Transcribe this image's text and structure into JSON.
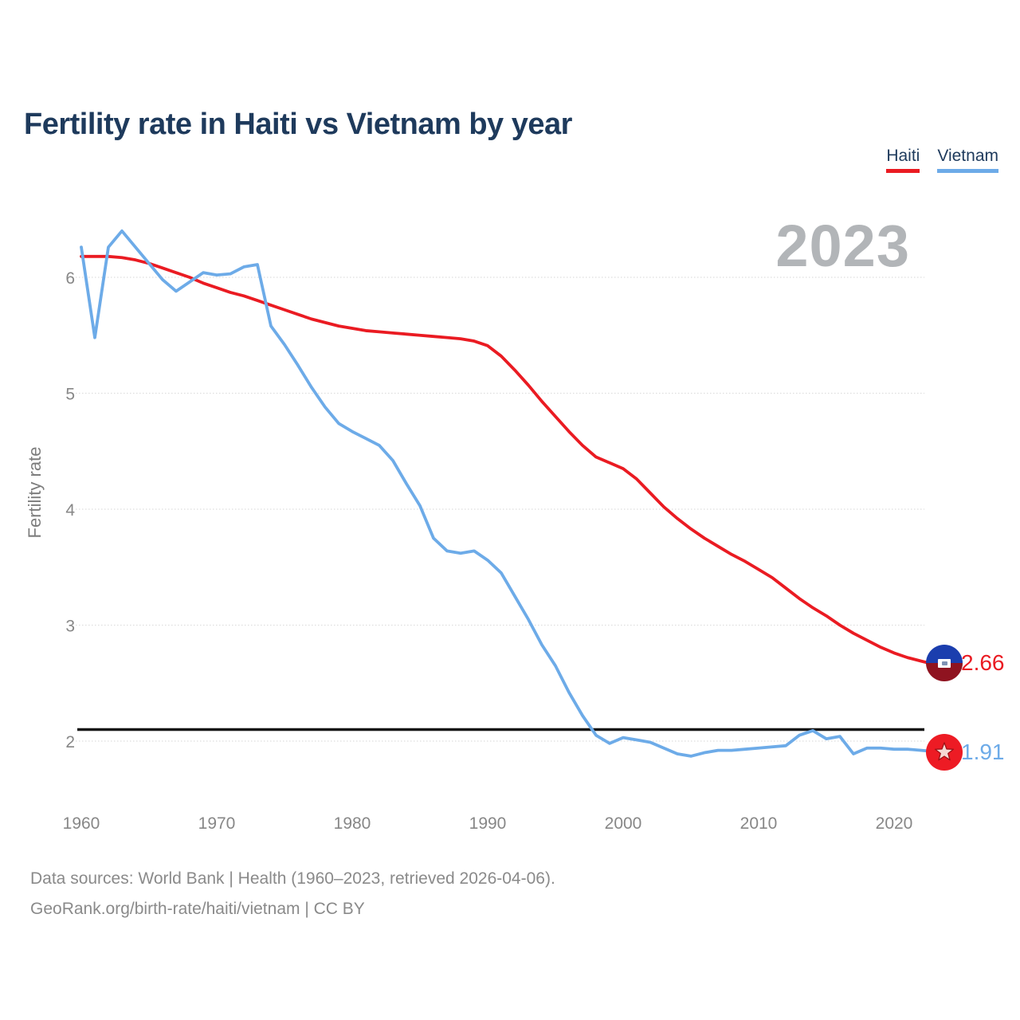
{
  "title": "Fertility rate in Haiti vs Vietnam by year",
  "watermark_year": "2023",
  "legend": [
    {
      "label": "Haiti",
      "color": "#ea1b22"
    },
    {
      "label": "Vietnam",
      "color": "#6dabe8"
    }
  ],
  "y_axis": {
    "label": "Fertility rate",
    "ticks": [
      2,
      3,
      4,
      5,
      6
    ]
  },
  "x_axis": {
    "ticks": [
      1960,
      1970,
      1980,
      1990,
      2000,
      2010,
      2020
    ]
  },
  "reference_line": {
    "value": 2.1,
    "color": "#161616"
  },
  "endpoints": [
    {
      "series": "Haiti",
      "value": "2.66",
      "flag": "haiti-flag"
    },
    {
      "series": "Vietnam",
      "value": "1.91",
      "flag": "vietnam-flag"
    }
  ],
  "footer": {
    "line1": "Data sources: World Bank | Health (1960–2023, retrieved 2026-04-06).",
    "line2": "GeoRank.org/birth-rate/haiti/vietnam | CC BY"
  },
  "chart_data": {
    "type": "line",
    "title": "Fertility rate in Haiti vs Vietnam by year",
    "xlabel": "",
    "ylabel": "Fertility rate",
    "xlim": [
      1960,
      2023
    ],
    "ylim": [
      1.7,
      6.6
    ],
    "grid": "horizontal-dotted",
    "legend_position": "top-right",
    "annotations": {
      "replacement_level_line": 2.1,
      "year_watermark": "2023"
    },
    "x": [
      1960,
      1961,
      1962,
      1963,
      1964,
      1965,
      1966,
      1967,
      1968,
      1969,
      1970,
      1971,
      1972,
      1973,
      1974,
      1975,
      1976,
      1977,
      1978,
      1979,
      1980,
      1981,
      1982,
      1983,
      1984,
      1985,
      1986,
      1987,
      1988,
      1989,
      1990,
      1991,
      1992,
      1993,
      1994,
      1995,
      1996,
      1997,
      1998,
      1999,
      2000,
      2001,
      2002,
      2003,
      2004,
      2005,
      2006,
      2007,
      2008,
      2009,
      2010,
      2011,
      2012,
      2013,
      2014,
      2015,
      2016,
      2017,
      2018,
      2019,
      2020,
      2021,
      2022,
      2023
    ],
    "series": [
      {
        "name": "Haiti",
        "color": "#ea1b22",
        "end_label": "2.66",
        "values": [
          6.18,
          6.18,
          6.18,
          6.17,
          6.15,
          6.12,
          6.08,
          6.04,
          6.0,
          5.95,
          5.91,
          5.87,
          5.84,
          5.8,
          5.76,
          5.72,
          5.68,
          5.64,
          5.61,
          5.58,
          5.56,
          5.54,
          5.53,
          5.52,
          5.51,
          5.5,
          5.49,
          5.48,
          5.47,
          5.45,
          5.41,
          5.32,
          5.2,
          5.07,
          4.93,
          4.8,
          4.67,
          4.55,
          4.45,
          4.4,
          4.35,
          4.26,
          4.14,
          4.02,
          3.92,
          3.83,
          3.75,
          3.68,
          3.61,
          3.55,
          3.48,
          3.41,
          3.32,
          3.23,
          3.15,
          3.08,
          3.0,
          2.93,
          2.87,
          2.81,
          2.76,
          2.72,
          2.69,
          2.66
        ]
      },
      {
        "name": "Vietnam",
        "color": "#6dabe8",
        "end_label": "1.91",
        "values": [
          6.26,
          5.48,
          6.26,
          6.4,
          6.26,
          6.12,
          5.98,
          5.88,
          5.96,
          6.04,
          6.02,
          6.03,
          6.09,
          6.11,
          5.58,
          5.42,
          5.24,
          5.05,
          4.88,
          4.74,
          4.67,
          4.61,
          4.55,
          4.42,
          4.22,
          4.03,
          3.75,
          3.64,
          3.62,
          3.64,
          3.56,
          3.45,
          3.25,
          3.05,
          2.83,
          2.65,
          2.42,
          2.22,
          2.05,
          1.98,
          2.03,
          2.01,
          1.99,
          1.94,
          1.89,
          1.87,
          1.9,
          1.92,
          1.92,
          1.93,
          1.94,
          1.95,
          1.96,
          2.05,
          2.09,
          2.02,
          2.04,
          1.89,
          1.94,
          1.94,
          1.93,
          1.93,
          1.92,
          1.91
        ]
      }
    ]
  }
}
